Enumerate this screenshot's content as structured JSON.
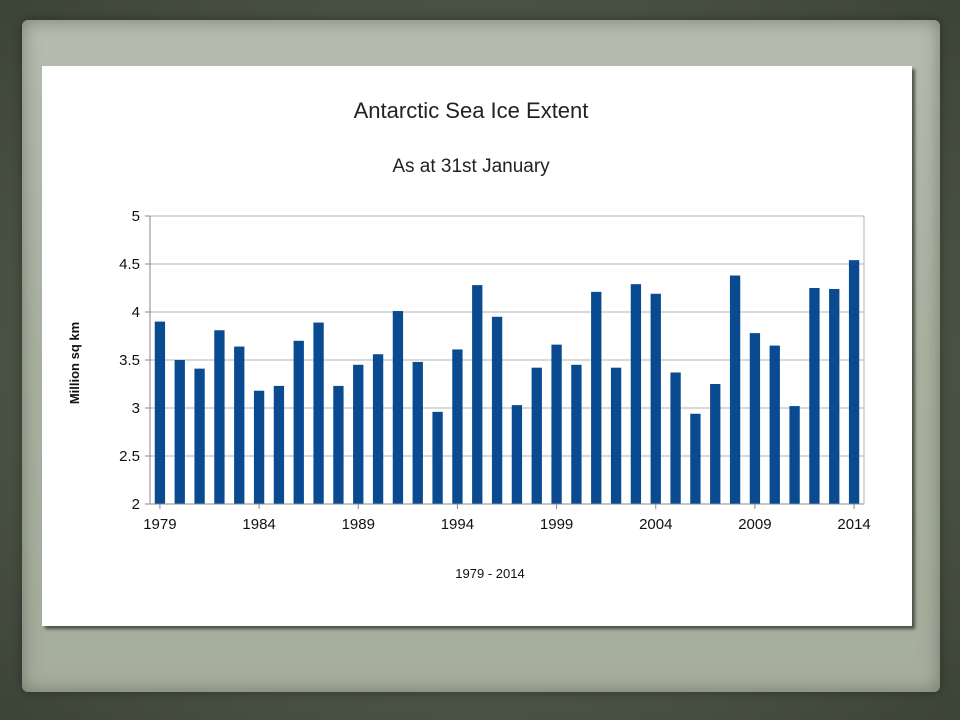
{
  "chart_data": {
    "type": "bar",
    "title": "Antarctic Sea Ice Extent",
    "subtitle": "As at 31st January",
    "xlabel": "1979 - 2014",
    "ylabel": "Million sq km",
    "ylim": [
      2,
      5
    ],
    "yticks": [
      "2",
      "2.5",
      "3",
      "3.5",
      "4",
      "4.5",
      "5"
    ],
    "xtick_labels": [
      "1979",
      "1984",
      "1989",
      "1994",
      "1999",
      "2004",
      "2009",
      "2014"
    ],
    "grid": true,
    "bar_color": "#0a4a91",
    "categories": [
      "1979",
      "1980",
      "1981",
      "1982",
      "1983",
      "1984",
      "1985",
      "1986",
      "1987",
      "1988",
      "1989",
      "1990",
      "1991",
      "1992",
      "1993",
      "1994",
      "1995",
      "1996",
      "1997",
      "1998",
      "1999",
      "2000",
      "2001",
      "2002",
      "2003",
      "2004",
      "2005",
      "2006",
      "2007",
      "2008",
      "2009",
      "2010",
      "2011",
      "2012",
      "2013",
      "2014"
    ],
    "values": [
      3.9,
      3.5,
      3.41,
      3.81,
      3.64,
      3.18,
      3.23,
      3.7,
      3.89,
      3.23,
      3.45,
      3.56,
      4.01,
      3.48,
      2.96,
      3.61,
      4.28,
      3.95,
      3.03,
      3.42,
      3.66,
      3.45,
      4.21,
      3.42,
      4.29,
      4.19,
      3.37,
      2.94,
      3.25,
      4.38,
      3.78,
      3.65,
      3.02,
      4.25,
      4.24,
      4.54
    ]
  }
}
